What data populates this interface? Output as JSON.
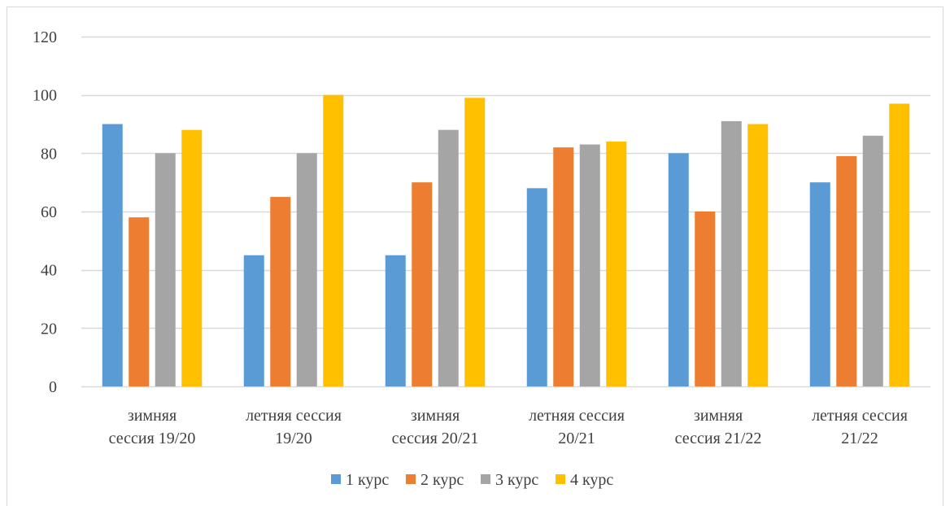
{
  "chart_data": {
    "type": "bar",
    "categories": [
      [
        "зимняя",
        "сессия 19/20"
      ],
      [
        "летняя сессия",
        "19/20"
      ],
      [
        "зимняя",
        "сессия 20/21"
      ],
      [
        "летняя сессия",
        "20/21"
      ],
      [
        "зимняя",
        "сессия 21/22"
      ],
      [
        "летняя сессия",
        "21/22"
      ]
    ],
    "series": [
      {
        "name": "1 курс",
        "color": "#5b9bd5",
        "values": [
          90,
          45,
          45,
          68,
          80,
          70
        ]
      },
      {
        "name": "2 курс",
        "color": "#ed7d31",
        "values": [
          58,
          65,
          70,
          82,
          60,
          79
        ]
      },
      {
        "name": "3 курс",
        "color": "#a5a5a5",
        "values": [
          80,
          80,
          88,
          83,
          91,
          86
        ]
      },
      {
        "name": "4 курс",
        "color": "#ffc000",
        "values": [
          88,
          100,
          99,
          84,
          90,
          97
        ]
      }
    ],
    "ylim": [
      0,
      120
    ],
    "yticks": [
      0,
      20,
      40,
      60,
      80,
      100,
      120
    ],
    "grid": true,
    "legend_position": "bottom",
    "title": "",
    "xlabel": "",
    "ylabel": ""
  }
}
